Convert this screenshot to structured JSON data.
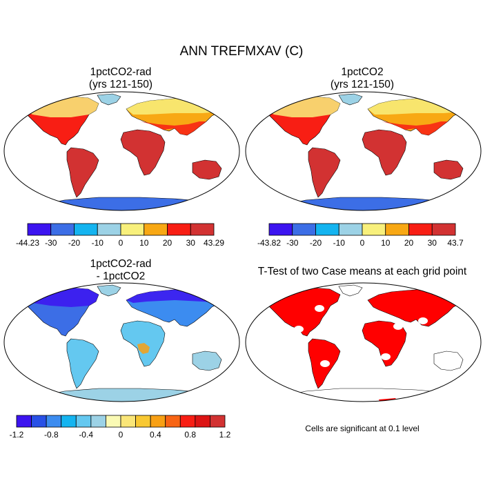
{
  "title": "ANN TREFMXAV (C)",
  "panels": {
    "p1": {
      "title_line1": "1pctCO2-rad",
      "title_line2": "(yrs 121-150)"
    },
    "p2": {
      "title_line1": "1pctCO2",
      "title_line2": "(yrs 121-150)"
    },
    "p3": {
      "title_line1": "1pctCO2-rad",
      "title_line2": "- 1pctCO2"
    },
    "p4": {
      "title_line1": "T-Test of two Case means at each grid point"
    }
  },
  "colorbars": {
    "cb1": {
      "colors": [
        "#3c14f0",
        "#3c6ee6",
        "#14b4f0",
        "#9cd2e6",
        "#f8f07c",
        "#f8a814",
        "#f81e14",
        "#d23232"
      ],
      "labels": [
        "-44.23",
        "-30",
        "-20",
        "-10",
        "0",
        "10",
        "20",
        "30",
        "43.29"
      ]
    },
    "cb2": {
      "colors": [
        "#3c14f0",
        "#3c6ee6",
        "#14b4f0",
        "#9cd2e6",
        "#f8f07c",
        "#f8a814",
        "#f81e14",
        "#d23232"
      ],
      "labels": [
        "-43.82",
        "-30",
        "-20",
        "-10",
        "0",
        "10",
        "20",
        "30",
        "43.7"
      ]
    },
    "cb3": {
      "colors": [
        "#3c14f0",
        "#2850e6",
        "#3c8cf0",
        "#14b4f0",
        "#64c8f0",
        "#9cd2e6",
        "#fafab4",
        "#fae678",
        "#f8c832",
        "#f8a014",
        "#f86414",
        "#f81e14",
        "#dc1414",
        "#d23232"
      ],
      "labels": [
        "-1.2",
        "-0.8",
        "-0.4",
        "0",
        "0.4",
        "0.8",
        "1.2"
      ]
    }
  },
  "significance_note": "Cells are significant at 0.1 level"
}
